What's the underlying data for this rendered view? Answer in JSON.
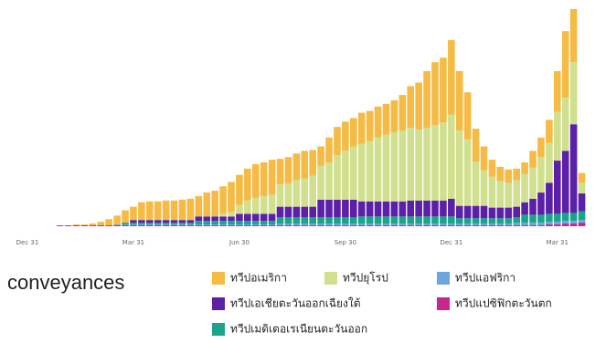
{
  "chart_data": {
    "type": "stacked-bar",
    "title": "conveyances",
    "categories": [
      "Dec 31",
      null,
      null,
      null,
      null,
      null,
      null,
      null,
      null,
      null,
      null,
      null,
      null,
      "Mar 31",
      null,
      null,
      null,
      null,
      null,
      null,
      null,
      null,
      null,
      null,
      null,
      null,
      "Jun 30",
      null,
      null,
      null,
      null,
      null,
      null,
      null,
      null,
      null,
      null,
      null,
      null,
      "Sep 30",
      null,
      null,
      null,
      null,
      null,
      null,
      null,
      null,
      null,
      null,
      null,
      null,
      "Dec 31",
      null,
      null,
      null,
      null,
      null,
      null,
      null,
      null,
      null,
      null,
      null,
      null,
      "Mar 31",
      null,
      null,
      null
    ],
    "ylim": [
      0,
      250
    ],
    "series": [
      {
        "name": "ทวีปแปซิฟิกตะวันตก",
        "color": "#c6268d",
        "values": [
          0,
          0,
          0,
          0,
          1,
          1,
          1,
          1,
          1,
          1,
          1,
          1,
          1,
          1,
          1,
          1,
          1,
          1,
          1,
          1,
          1,
          1,
          1,
          1,
          1,
          1,
          1,
          1,
          1,
          1,
          1,
          1,
          1,
          1,
          1,
          1,
          1,
          1,
          1,
          1,
          1,
          1,
          1,
          1,
          1,
          1,
          1,
          1,
          1,
          1,
          1,
          1,
          1,
          1,
          1,
          1,
          1,
          1,
          1,
          1,
          1,
          1,
          1,
          1,
          2,
          2,
          3,
          3,
          4
        ]
      },
      {
        "name": "ทวีปแอฟริกา",
        "color": "#6aa6e0",
        "values": [
          0,
          0,
          0,
          0,
          0,
          0,
          0,
          0,
          0,
          0,
          0,
          1,
          1,
          1,
          1,
          1,
          1,
          1,
          1,
          1,
          1,
          1,
          1,
          1,
          1,
          1,
          1,
          1,
          1,
          1,
          1,
          2,
          2,
          2,
          2,
          2,
          2,
          2,
          2,
          2,
          2,
          2,
          2,
          2,
          2,
          2,
          2,
          2,
          2,
          2,
          2,
          2,
          2,
          2,
          2,
          2,
          2,
          2,
          2,
          2,
          3,
          3,
          3,
          3,
          3,
          3,
          3,
          3,
          3
        ]
      },
      {
        "name": "ทวีปเมดิเตอเรเนียนตะวันออก",
        "color": "#1aa58a",
        "values": [
          0,
          0,
          0,
          0,
          0,
          0,
          0,
          0,
          0,
          0,
          0,
          0,
          2,
          2,
          2,
          2,
          2,
          2,
          2,
          2,
          2,
          4,
          4,
          4,
          4,
          4,
          4,
          4,
          4,
          4,
          4,
          7,
          7,
          7,
          7,
          7,
          7,
          7,
          7,
          7,
          7,
          8,
          8,
          8,
          8,
          8,
          8,
          8,
          8,
          8,
          8,
          8,
          8,
          6,
          6,
          6,
          6,
          6,
          6,
          6,
          6,
          9,
          9,
          9,
          9,
          9,
          9,
          9,
          10
        ]
      },
      {
        "name": "ทวีปเอเชียตะวันออกเฉียงใต้",
        "color": "#5b1fa8",
        "values": [
          0,
          0,
          0,
          0,
          0,
          0,
          0,
          0,
          0,
          0,
          0,
          0,
          0,
          3,
          3,
          3,
          3,
          3,
          3,
          3,
          3,
          5,
          5,
          5,
          5,
          5,
          8,
          8,
          8,
          8,
          8,
          12,
          12,
          12,
          12,
          12,
          20,
          20,
          20,
          20,
          20,
          17,
          17,
          17,
          17,
          17,
          17,
          18,
          18,
          18,
          18,
          18,
          20,
          14,
          14,
          14,
          14,
          12,
          12,
          12,
          12,
          14,
          18,
          25,
          35,
          60,
          70,
          100,
          20
        ]
      },
      {
        "name": "ทวีปยุโรป",
        "color": "#d1e08e",
        "values": [
          0,
          0,
          0,
          0,
          0,
          0,
          0,
          0,
          0,
          0,
          0,
          0,
          0,
          0,
          0,
          0,
          0,
          0,
          0,
          0,
          0,
          0,
          0,
          0,
          3,
          5,
          10,
          15,
          18,
          20,
          22,
          25,
          26,
          30,
          32,
          35,
          38,
          42,
          50,
          55,
          60,
          65,
          68,
          72,
          75,
          78,
          80,
          82,
          80,
          82,
          85,
          88,
          95,
          85,
          75,
          50,
          40,
          35,
          30,
          28,
          30,
          32,
          35,
          40,
          45,
          55,
          60,
          70,
          12
        ]
      },
      {
        "name": "ทวีปอเมริกา",
        "color": "#f5bb45",
        "values": [
          0,
          0,
          0,
          0,
          0,
          0,
          1,
          1,
          2,
          4,
          7,
          10,
          14,
          15,
          20,
          21,
          21,
          22,
          22,
          23,
          24,
          23,
          27,
          29,
          31,
          34,
          34,
          36,
          38,
          38,
          39,
          29,
          30,
          30,
          31,
          29,
          22,
          28,
          32,
          33,
          32,
          35,
          34,
          35,
          35,
          36,
          40,
          47,
          53,
          64,
          71,
          73,
          84,
          67,
          53,
          37,
          27,
          19,
          16,
          15,
          13,
          13,
          19,
          22,
          26,
          46,
          75,
          60,
          11
        ]
      }
    ]
  }
}
